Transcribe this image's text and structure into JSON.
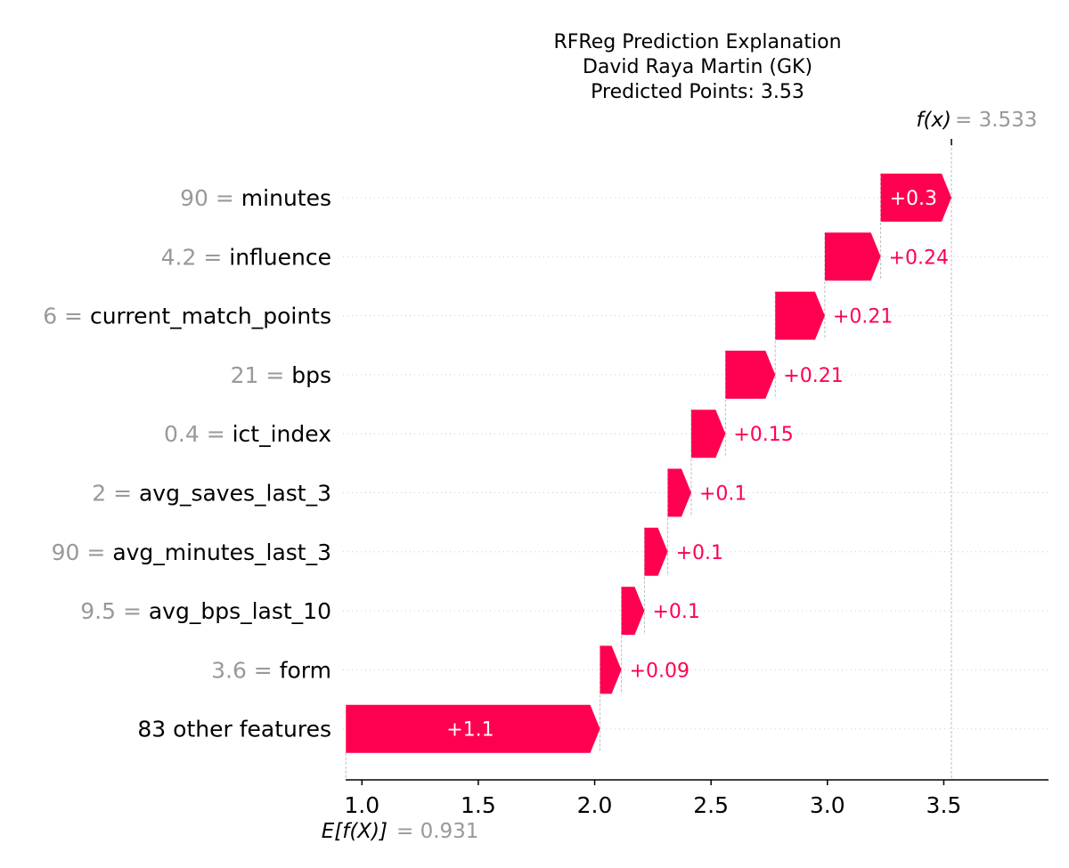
{
  "chart_data": {
    "type": "waterfall",
    "title_lines": [
      "RFReg Prediction Explanation",
      "David Raya Martin (GK)",
      "Predicted Points: 3.53"
    ],
    "base_value": 0.931,
    "base_value_label": "0.931",
    "base_label_text": "E[f(X)]",
    "output_value": 3.533,
    "output_value_label": "3.533",
    "output_label_text": "f(x)",
    "xlim": [
      0.93,
      3.95
    ],
    "xticks": [
      1.0,
      1.5,
      2.0,
      2.5,
      3.0,
      3.5
    ],
    "xtick_labels": [
      "1.0",
      "1.5",
      "2.0",
      "2.5",
      "3.0",
      "3.5"
    ],
    "features": [
      {
        "value_text": "90",
        "name": "minutes",
        "contribution": 0.304,
        "label": "+0.3",
        "start": 3.229,
        "end": 3.533,
        "label_inside": true
      },
      {
        "value_text": "4.2",
        "name": "influence",
        "contribution": 0.24,
        "label": "+0.24",
        "start": 2.989,
        "end": 3.229,
        "label_inside": false
      },
      {
        "value_text": "6",
        "name": "current_match_points",
        "contribution": 0.21,
        "label": "+0.21",
        "start": 2.776,
        "end": 2.989,
        "label_inside": false
      },
      {
        "value_text": "21",
        "name": "bps",
        "contribution": 0.21,
        "label": "+0.21",
        "start": 2.562,
        "end": 2.776,
        "label_inside": false
      },
      {
        "value_text": "0.4",
        "name": "ict_index",
        "contribution": 0.15,
        "label": "+0.15",
        "start": 2.415,
        "end": 2.562,
        "label_inside": false
      },
      {
        "value_text": "2",
        "name": "avg_saves_last_3",
        "contribution": 0.1,
        "label": "+0.1",
        "start": 2.314,
        "end": 2.415,
        "label_inside": false
      },
      {
        "value_text": "90",
        "name": "avg_minutes_last_3",
        "contribution": 0.1,
        "label": "+0.1",
        "start": 2.214,
        "end": 2.314,
        "label_inside": false
      },
      {
        "value_text": "9.5",
        "name": "avg_bps_last_10",
        "contribution": 0.1,
        "label": "+0.1",
        "start": 2.115,
        "end": 2.214,
        "label_inside": false
      },
      {
        "value_text": "3.6",
        "name": "form",
        "contribution": 0.09,
        "label": "+0.09",
        "start": 2.023,
        "end": 2.115,
        "label_inside": false
      },
      {
        "value_text": "",
        "name": "83 other features",
        "contribution": 1.092,
        "label": "+1.1",
        "start": 0.931,
        "end": 2.023,
        "label_inside": true
      }
    ],
    "colors": {
      "positive": "#ff0051",
      "muted_text": "#999999",
      "grid": "#cccccc"
    }
  }
}
